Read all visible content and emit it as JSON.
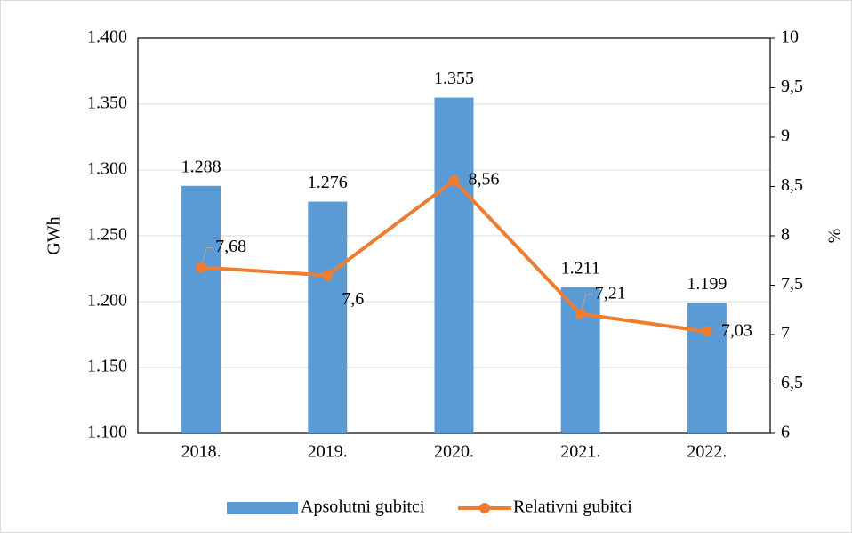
{
  "chart_data": {
    "type": "bar-line",
    "categories": [
      "2018.",
      "2019.",
      "2020.",
      "2021.",
      "2022."
    ],
    "y_label": "GWh",
    "y2_label": "%",
    "ylim": [
      1100,
      1400
    ],
    "yticks": [
      {
        "value": 1100,
        "label": "1.100"
      },
      {
        "value": 1150,
        "label": "1.150"
      },
      {
        "value": 1200,
        "label": "1.200"
      },
      {
        "value": 1250,
        "label": "1.250"
      },
      {
        "value": 1300,
        "label": "1.300"
      },
      {
        "value": 1350,
        "label": "1.350"
      },
      {
        "value": 1400,
        "label": "1.400"
      }
    ],
    "y2lim": [
      6,
      10
    ],
    "y2ticks": [
      6,
      {
        "value": 6.5,
        "label": "6,5"
      },
      7,
      {
        "value": 7.5,
        "label": "7,5"
      },
      8,
      {
        "value": 8.5,
        "label": "8,5"
      },
      9,
      {
        "value": 9.5,
        "label": "9,5"
      },
      10
    ],
    "grid": true,
    "legend": "bottom",
    "series": [
      {
        "name": "Apsolutni gubitci",
        "type": "bar",
        "color": "#5b9bd5",
        "values": [
          1288,
          1276,
          1355,
          1211,
          1199
        ],
        "value_labels": [
          "1.288",
          "1.276",
          "1.355",
          "1.211",
          "1.199"
        ]
      },
      {
        "name": "Relativni gubitci",
        "type": "line",
        "axis": "y2",
        "color": "#ed7d31",
        "values": [
          7.68,
          7.6,
          8.56,
          7.21,
          7.03
        ],
        "value_labels": [
          "7,68",
          "7,6",
          "8,56",
          "7,21",
          "7,03"
        ]
      }
    ]
  }
}
